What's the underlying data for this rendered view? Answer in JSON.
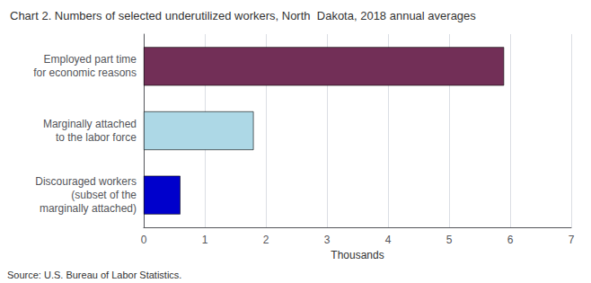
{
  "chart_data": {
    "type": "bar",
    "title": "Chart 2. Numbers of selected underutilized workers, North  Dakota, 2018 annual averages",
    "orientation": "horizontal",
    "categories": [
      "Discouraged workers\n(subset of the\nmarginally attached)",
      "Marginally attached\nto the labor force",
      "Employed part time\nfor economic reasons"
    ],
    "values": [
      0.6,
      1.8,
      5.9
    ],
    "colors": [
      "#0000cc",
      "#add8e6",
      "#722f57"
    ],
    "xlabel": "Thousands",
    "xlim": [
      0,
      7
    ],
    "xticks": [
      0,
      1,
      2,
      3,
      4,
      5,
      6,
      7
    ],
    "grid": true,
    "annotations": [
      "Source: U.S. Bureau of Labor Statistics."
    ]
  }
}
